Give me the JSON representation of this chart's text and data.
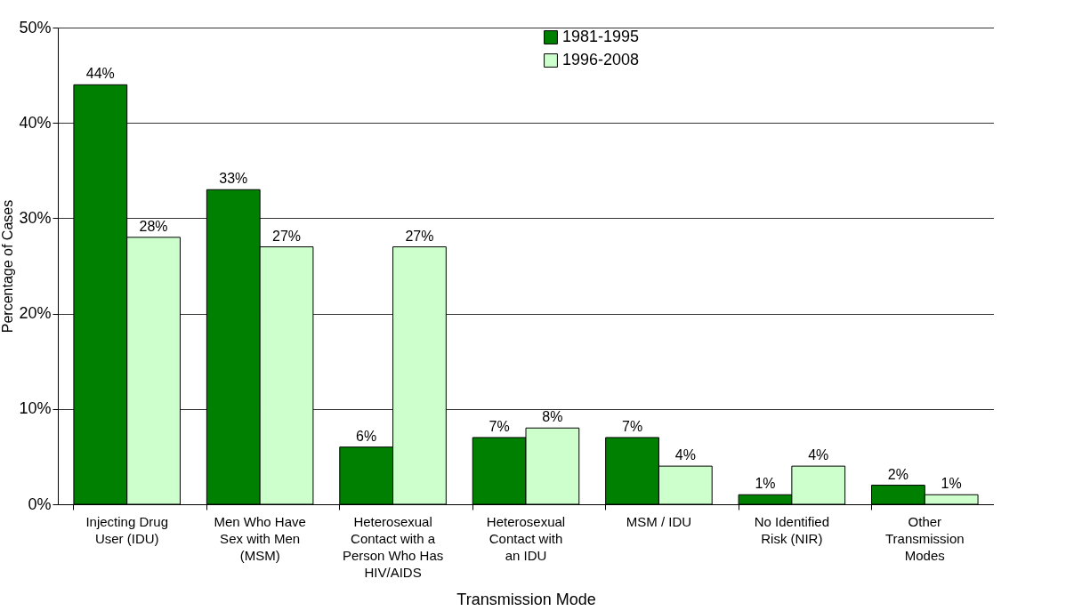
{
  "chart_data": {
    "type": "bar",
    "xlabel": "Transmission Mode",
    "ylabel": "Percentage of Cases",
    "categories": [
      "Injecting Drug User (IDU)",
      "Men Who Have Sex with Men (MSM)",
      "Heterosexual Contact with a Person Who Has HIV/AIDS",
      "Heterosexual Contact with an IDU",
      "MSM / IDU",
      "No Identified Risk (NIR)",
      "Other Transmission Modes"
    ],
    "series": [
      {
        "name": "1981-1995",
        "color": "#008000",
        "values": [
          44,
          33,
          6,
          7,
          7,
          1,
          2
        ],
        "value_labels": [
          "44%",
          "33%",
          "6%",
          "7%",
          "7%",
          "1%",
          "2%"
        ]
      },
      {
        "name": "1996-2008",
        "color": "#ccffcc",
        "values": [
          28,
          27,
          27,
          8,
          4,
          4,
          1
        ],
        "value_labels": [
          "28%",
          "27%",
          "27%",
          "8%",
          "4%",
          "4%",
          "1%"
        ]
      }
    ],
    "ylim": [
      0,
      50
    ],
    "yticks": [
      {
        "value": 0,
        "label": "0%"
      },
      {
        "value": 10,
        "label": "10%"
      },
      {
        "value": 20,
        "label": "20%"
      },
      {
        "value": 30,
        "label": "30%"
      },
      {
        "value": 40,
        "label": "40%"
      },
      {
        "value": 50,
        "label": "50%"
      }
    ],
    "grid": "y",
    "legend": "top"
  }
}
